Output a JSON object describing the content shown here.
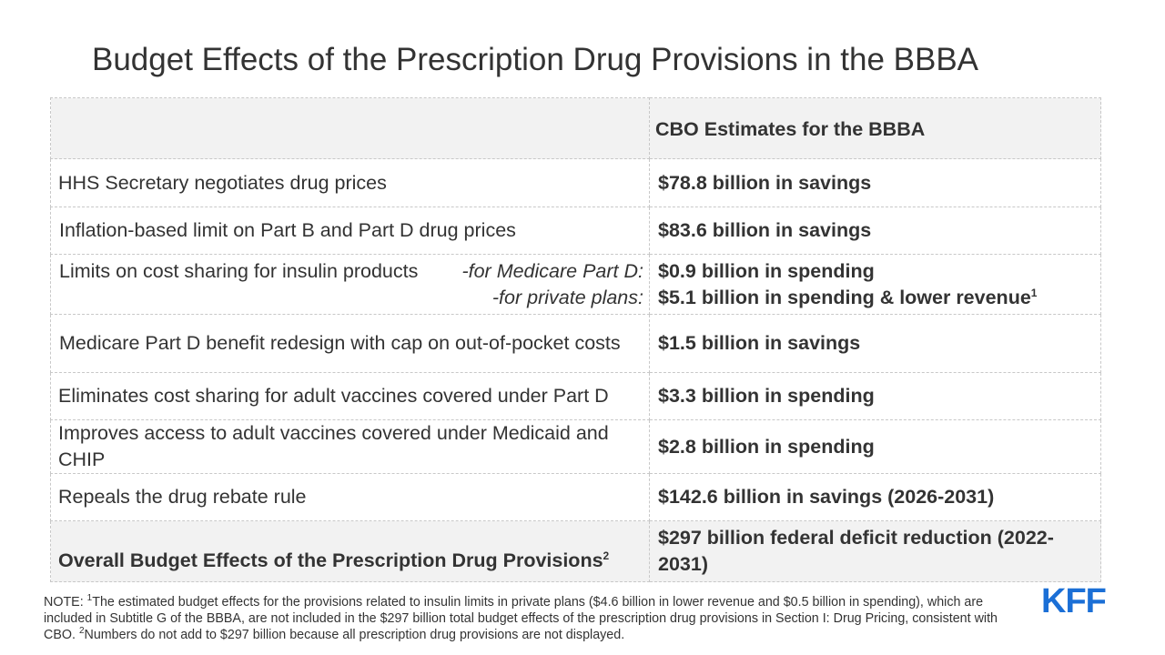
{
  "title": "Budget Effects of the Prescription Drug Provisions in the BBBA",
  "header": {
    "col1": "",
    "col2": "CBO Estimates for the BBBA"
  },
  "rows": [
    {
      "label": "HHS Secretary negotiates drug prices",
      "value": "$78.8 billion in savings",
      "color": "#00b27a"
    },
    {
      "label": "Inflation-based limit on Part B and Part D drug prices",
      "value": "$83.6 billion in savings",
      "color": "#00b27a"
    },
    {
      "label": "Limits on cost sharing for insulin products",
      "sub1": "-for Medicare Part D:",
      "sub2": "-for private plans:",
      "value1": "$0.9 billion in spending",
      "value2": "$5.1 billion in spending & lower revenue",
      "value2_sup": "1",
      "color": "#e6313c"
    },
    {
      "label": "Medicare Part D benefit redesign with cap on out-of-pocket costs",
      "value": "$1.5 billion in savings",
      "color": "#00b27a"
    },
    {
      "label": "Eliminates cost sharing for adult vaccines covered under Part D",
      "value": "$3.3 billion in spending",
      "color": "#e6313c"
    },
    {
      "label": "Improves access to adult vaccines covered under Medicaid and CHIP",
      "value": "$2.8 billion in spending",
      "color": "#e6313c"
    },
    {
      "label": "Repeals the drug rebate rule",
      "value": "$142.6 billion in savings (2026-2031)",
      "color": "#00b27a"
    }
  ],
  "total": {
    "label": "Overall Budget Effects of the Prescription Drug Provisions",
    "label_sup": "2",
    "value": "$297 billion federal deficit reduction (2022-2031)",
    "color": "#00b27a"
  },
  "note": {
    "prefix": "NOTE: ",
    "sup1": "1",
    "text1": "The estimated budget effects for the provisions related to insulin limits in private plans ($4.6 billion in lower revenue and $0.5 billion in spending), which are included in Subtitle G of the BBBA, are not included in the $297 billion total budget effects of the prescription drug provisions in Section I: Drug Pricing, consistent with CBO. ",
    "sup2": "2",
    "text2": "Numbers do not add to $297 billion because all prescription drug provisions are not displayed."
  },
  "logo": "KFF",
  "colors": {
    "savings": "#00b27a",
    "spending": "#e6313c",
    "logo": "#1b6fd6"
  }
}
